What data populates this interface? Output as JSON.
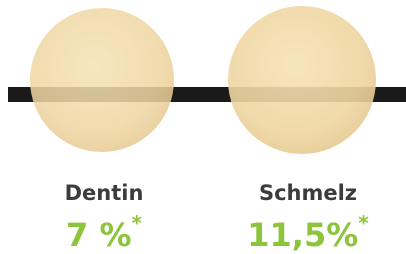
{
  "items": [
    {
      "name": "Dentin",
      "value": "7 %",
      "note": "*"
    },
    {
      "name": "Schmelz",
      "value": "11,5%",
      "note": "*"
    }
  ]
}
